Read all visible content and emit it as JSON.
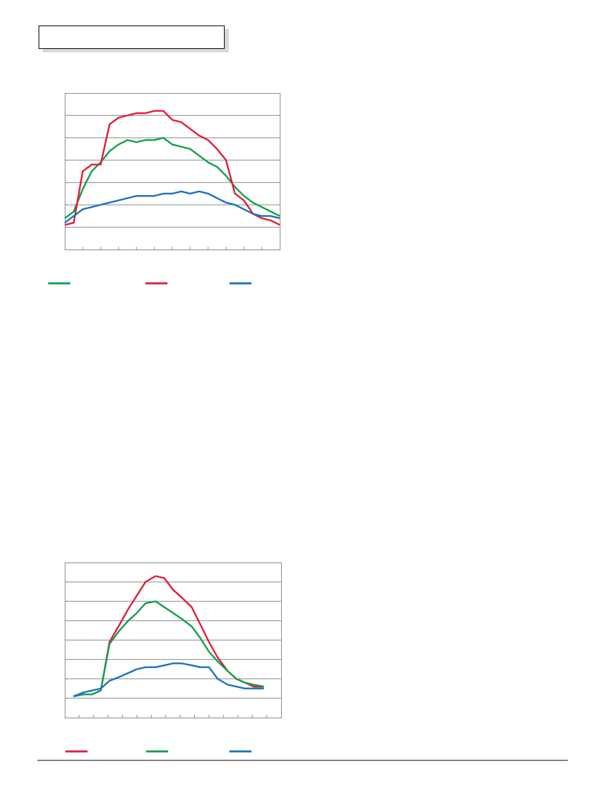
{
  "chart_data": [
    {
      "type": "line",
      "x": [
        0,
        1,
        2,
        3,
        4,
        5,
        6,
        7,
        8,
        9,
        10,
        11,
        12,
        13,
        14,
        15,
        16,
        17,
        18,
        19,
        20,
        21,
        22,
        23,
        24
      ],
      "xlim": [
        0,
        24
      ],
      "xticks": [
        2,
        4,
        6,
        8,
        10,
        12,
        14,
        16,
        18,
        20,
        22
      ],
      "ylim": [
        0,
        7
      ],
      "yticks": [
        1,
        2,
        3,
        4,
        5,
        6
      ],
      "grid": true,
      "series": [
        {
          "color": "#16a04c",
          "values": [
            1.4,
            1.7,
            2.7,
            3.5,
            3.9,
            4.4,
            4.7,
            4.9,
            4.8,
            4.9,
            4.9,
            5.0,
            4.7,
            4.6,
            4.5,
            4.2,
            3.9,
            3.7,
            3.3,
            2.8,
            2.4,
            2.1,
            1.9,
            1.7,
            1.5
          ]
        },
        {
          "color": "#e0203a",
          "values": [
            1.1,
            1.2,
            3.5,
            3.8,
            3.8,
            5.6,
            5.9,
            6.0,
            6.1,
            6.1,
            6.2,
            6.2,
            5.8,
            5.7,
            5.4,
            5.1,
            4.9,
            4.5,
            4.0,
            2.5,
            2.2,
            1.6,
            1.4,
            1.3,
            1.1
          ]
        },
        {
          "color": "#1f73c0",
          "values": [
            1.2,
            1.5,
            1.8,
            1.9,
            2.0,
            2.1,
            2.2,
            2.3,
            2.4,
            2.4,
            2.4,
            2.5,
            2.5,
            2.6,
            2.5,
            2.6,
            2.5,
            2.3,
            2.1,
            2.0,
            1.8,
            1.6,
            1.5,
            1.5,
            1.4
          ]
        }
      ]
    },
    {
      "type": "line",
      "x": [
        0.6,
        1.3,
        1.9,
        2.5,
        3.1,
        3.8,
        4.4,
        5,
        5.6,
        6.3,
        6.9,
        7.5,
        8.1,
        8.8,
        9.4,
        10,
        10.6,
        11.3,
        11.9,
        12.5,
        13.1,
        13.8
      ],
      "xlim": [
        0,
        15
      ],
      "xticks": [
        1,
        2,
        3,
        4,
        5,
        6,
        7,
        8,
        9,
        10,
        11,
        12,
        13,
        14
      ],
      "ylim": [
        0,
        8
      ],
      "yticks": [
        1,
        2,
        3,
        4,
        5,
        6,
        7
      ],
      "grid": true,
      "series": [
        {
          "color": "#e0203a",
          "values": [
            1.1,
            1.2,
            1.2,
            1.4,
            3.9,
            4.8,
            5.6,
            6.3,
            7.0,
            7.3,
            7.2,
            6.6,
            6.2,
            5.7,
            4.8,
            3.9,
            3.1,
            2.4,
            2.0,
            1.8,
            1.6,
            1.6
          ]
        },
        {
          "color": "#16a04c",
          "values": [
            1.1,
            1.2,
            1.2,
            1.4,
            3.8,
            4.5,
            5.0,
            5.4,
            5.9,
            6.0,
            5.7,
            5.4,
            5.1,
            4.7,
            4.1,
            3.4,
            2.9,
            2.4,
            2.0,
            1.8,
            1.7,
            1.6
          ]
        },
        {
          "color": "#1f73c0",
          "values": [
            1.1,
            1.3,
            1.4,
            1.5,
            1.9,
            2.1,
            2.3,
            2.5,
            2.6,
            2.6,
            2.7,
            2.8,
            2.8,
            2.7,
            2.6,
            2.6,
            2.0,
            1.7,
            1.6,
            1.5,
            1.5,
            1.5
          ]
        }
      ]
    }
  ]
}
